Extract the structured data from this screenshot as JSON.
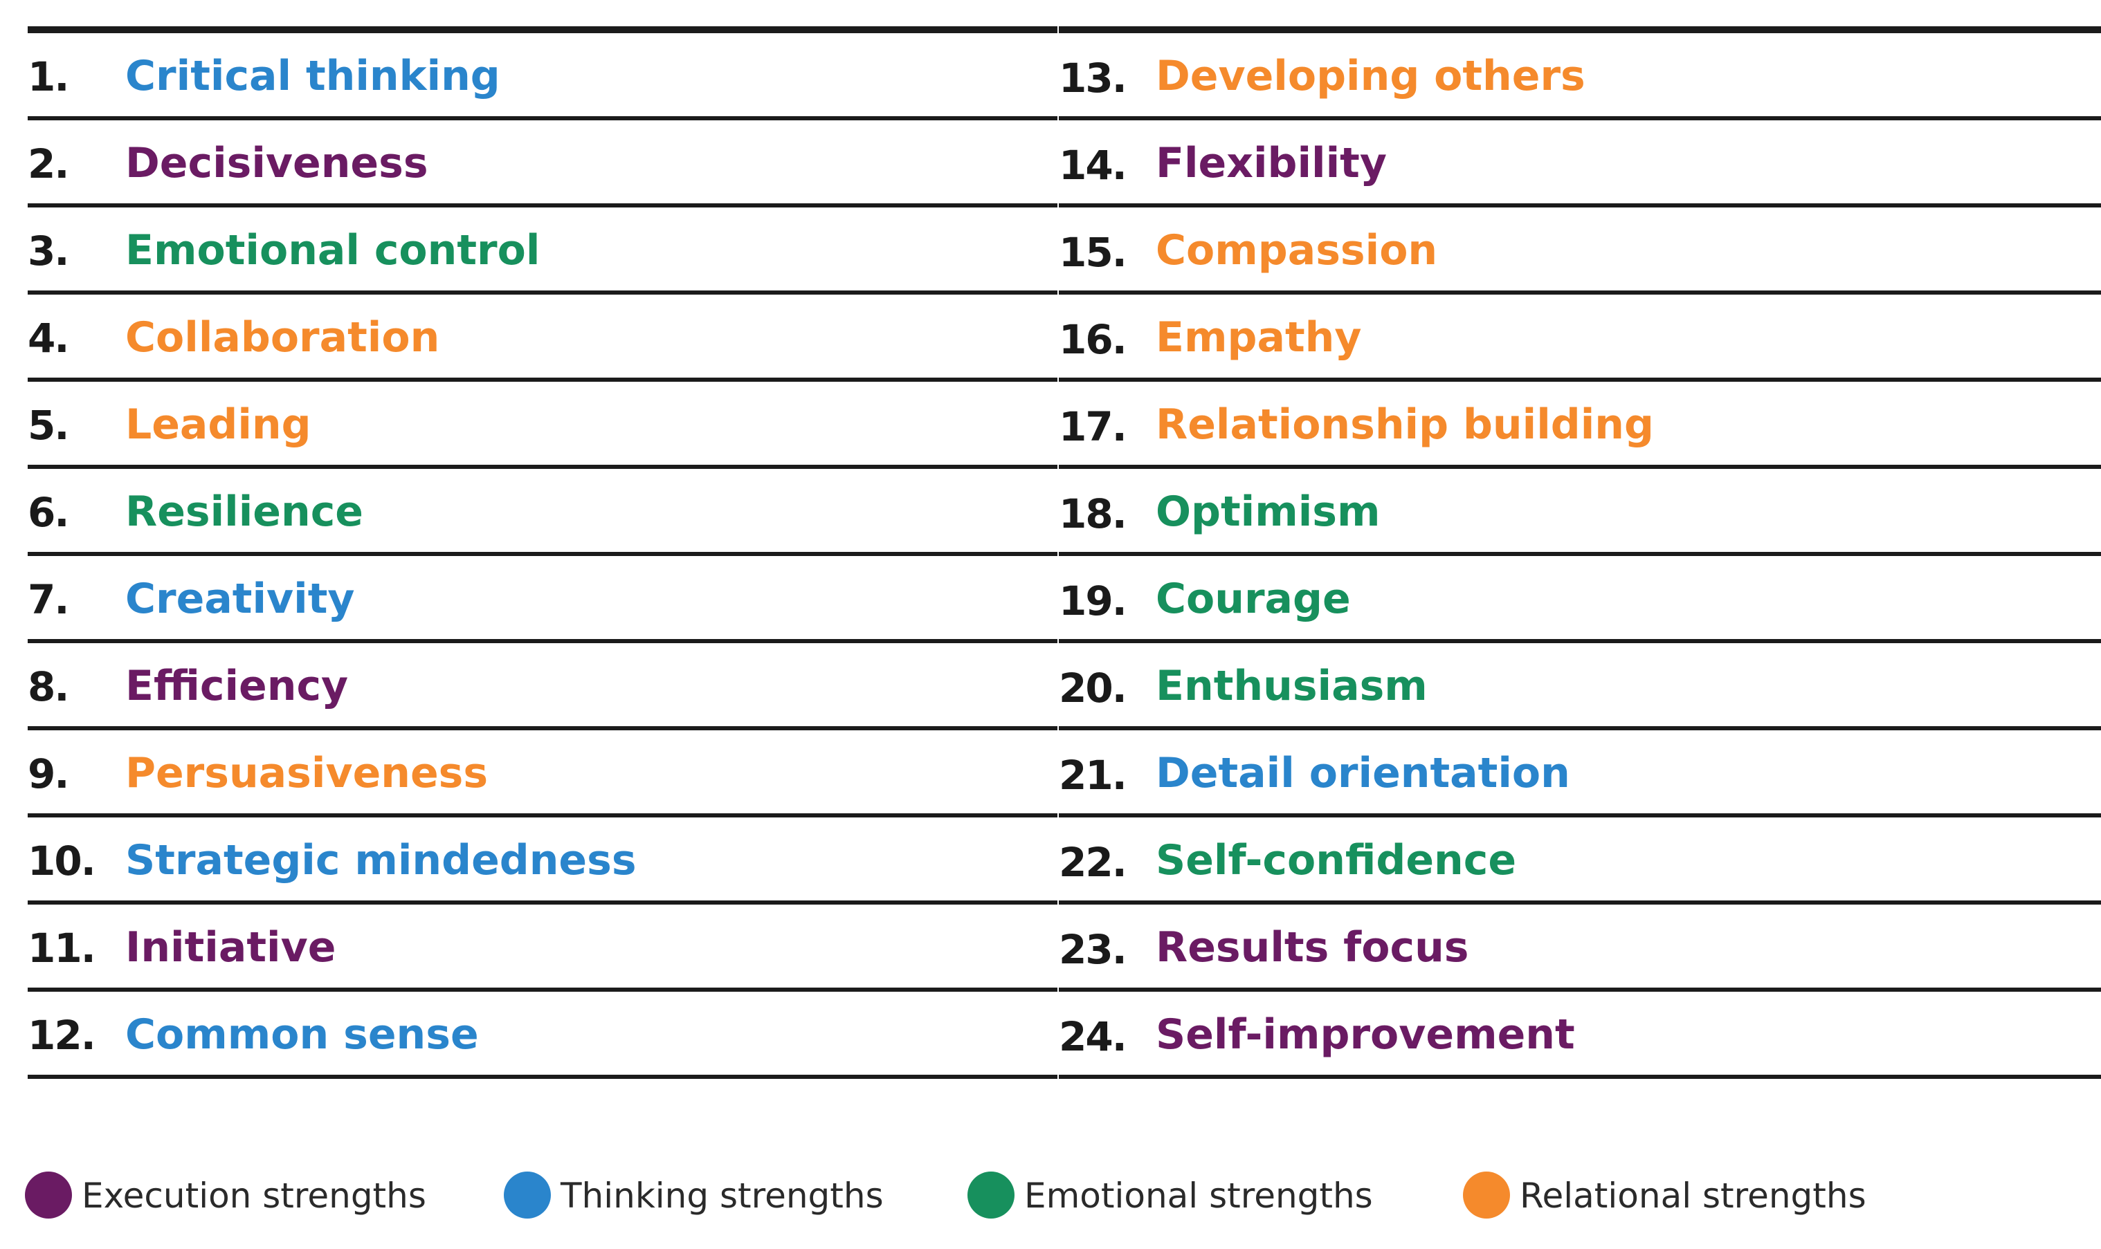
{
  "colors": {
    "execution": "#6a1b63",
    "thinking": "#2a85cc",
    "emotional": "#17905d",
    "relational": "#f58a2c"
  },
  "left_items": [
    {
      "num": "1.",
      "label": "Critical thinking",
      "category": "thinking"
    },
    {
      "num": "2.",
      "label": "Decisiveness",
      "category": "execution"
    },
    {
      "num": "3.",
      "label": "Emotional control",
      "category": "emotional"
    },
    {
      "num": "4.",
      "label": "Collaboration",
      "category": "relational"
    },
    {
      "num": "5.",
      "label": "Leading",
      "category": "relational"
    },
    {
      "num": "6.",
      "label": "Resilience",
      "category": "emotional"
    },
    {
      "num": "7.",
      "label": "Creativity",
      "category": "thinking"
    },
    {
      "num": "8.",
      "label": "Efficiency",
      "category": "execution"
    },
    {
      "num": "9.",
      "label": "Persuasiveness",
      "category": "relational"
    },
    {
      "num": "10.",
      "label": "Strategic mindedness",
      "category": "thinking"
    },
    {
      "num": "11.",
      "label": "Initiative",
      "category": "execution"
    },
    {
      "num": "12.",
      "label": "Common sense",
      "category": "thinking"
    }
  ],
  "right_items": [
    {
      "num": "13.",
      "label": "Developing others",
      "category": "relational"
    },
    {
      "num": "14.",
      "label": "Flexibility",
      "category": "execution"
    },
    {
      "num": "15.",
      "label": "Compassion",
      "category": "relational"
    },
    {
      "num": "16.",
      "label": "Empathy",
      "category": "relational"
    },
    {
      "num": "17.",
      "label": "Relationship building",
      "category": "relational"
    },
    {
      "num": "18.",
      "label": "Optimism",
      "category": "emotional"
    },
    {
      "num": "19.",
      "label": "Courage",
      "category": "emotional"
    },
    {
      "num": "20.",
      "label": "Enthusiasm",
      "category": "emotional"
    },
    {
      "num": "21.",
      "label": "Detail orientation",
      "category": "thinking"
    },
    {
      "num": "22.",
      "label": "Self-confidence",
      "category": "emotional"
    },
    {
      "num": "23.",
      "label": "Results focus",
      "category": "execution"
    },
    {
      "num": "24.",
      "label": "Self-improvement",
      "category": "execution"
    }
  ],
  "legend": [
    {
      "label": "Execution strengths",
      "category": "execution"
    },
    {
      "label": "Thinking strengths",
      "category": "thinking"
    },
    {
      "label": "Emotional strengths",
      "category": "emotional"
    },
    {
      "label": "Relational strengths",
      "category": "relational"
    }
  ]
}
